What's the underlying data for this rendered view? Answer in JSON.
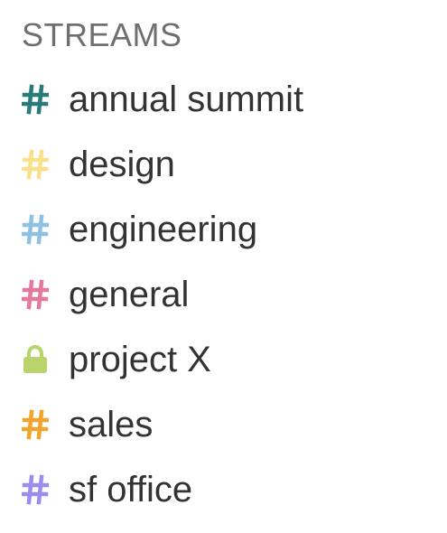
{
  "sidebar": {
    "header": "STREAMS",
    "streams": [
      {
        "name": "annual summit",
        "icon": "hash-icon",
        "color": "#2a7a7a"
      },
      {
        "name": "design",
        "icon": "hash-icon",
        "color": "#f9e18c"
      },
      {
        "name": "engineering",
        "icon": "hash-icon",
        "color": "#8fc1e3"
      },
      {
        "name": "general",
        "icon": "hash-icon",
        "color": "#e5799c"
      },
      {
        "name": "project X",
        "icon": "lock-icon",
        "color": "#b8d46a"
      },
      {
        "name": "sales",
        "icon": "hash-icon",
        "color": "#f0a42b"
      },
      {
        "name": "sf office",
        "icon": "hash-icon",
        "color": "#9b8cf2"
      }
    ]
  }
}
